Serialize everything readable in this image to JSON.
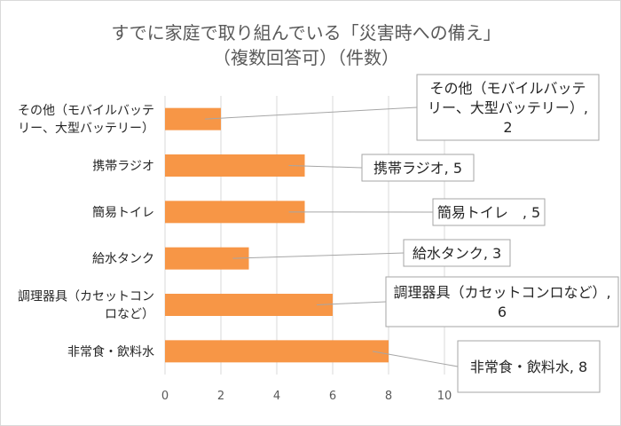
{
  "chart_data": {
    "type": "bar",
    "orientation": "horizontal",
    "title": [
      "すでに家庭で取り組んでいる「災害時への備え」",
      "（複数回答可）（件数）"
    ],
    "categories": [
      [
        "その他（モバイルバッテ",
        "リー、大型バッテリー）"
      ],
      [
        "携帯ラジオ"
      ],
      [
        "簡易トイレ"
      ],
      [
        "給水タンク"
      ],
      [
        "調理器具（カセットコン",
        "ロなど）"
      ],
      [
        "非常食・飲料水"
      ]
    ],
    "values": [
      2,
      5,
      5,
      3,
      6,
      8
    ],
    "data_labels": [
      [
        "その他（モバイルバッテ",
        "リー、大型バッテリー）,",
        "2"
      ],
      [
        "携帯ラジオ, 5"
      ],
      [
        "簡易トイレ　, 5"
      ],
      [
        "給水タンク, 3"
      ],
      [
        "調理器具（カセットコンロなど）,",
        "6"
      ],
      [
        "非常食・飲料水, 8"
      ]
    ],
    "xlim": [
      0,
      10
    ],
    "x_ticks": [
      "0",
      "2",
      "4",
      "6",
      "8",
      "10"
    ],
    "grid": "vertical",
    "bar_color": "#f79646",
    "xlabel": "",
    "ylabel": ""
  }
}
